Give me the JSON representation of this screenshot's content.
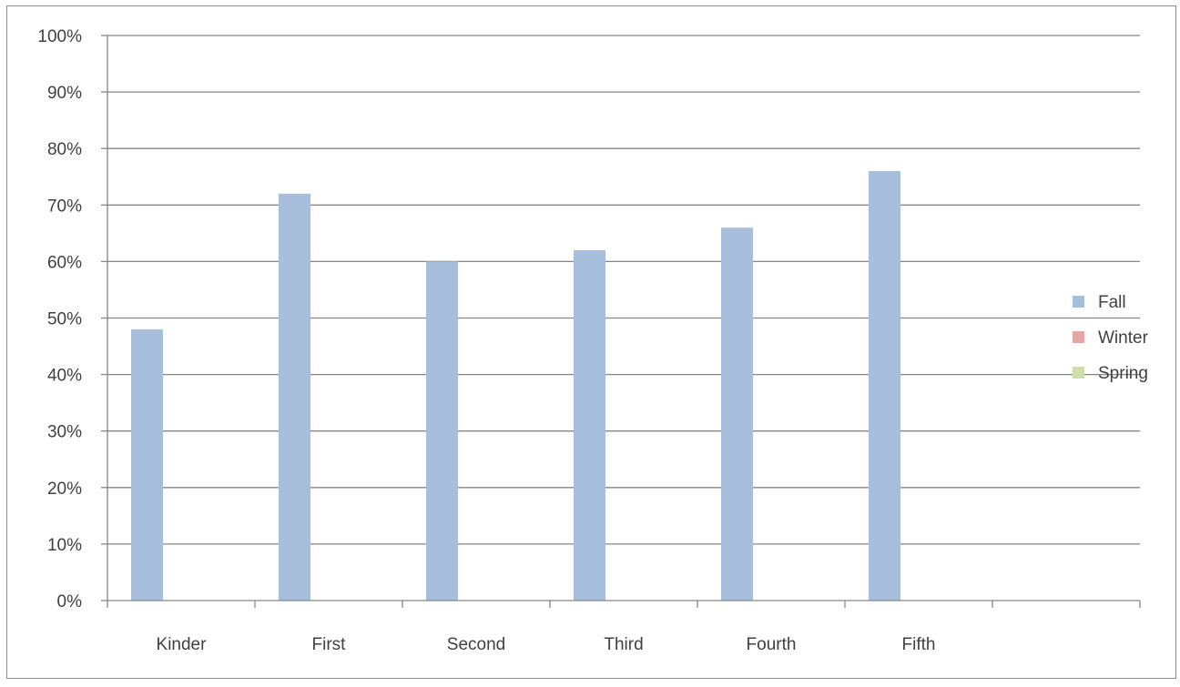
{
  "chart_data": {
    "type": "bar",
    "categories": [
      "Kinder",
      "First",
      "Second",
      "Third",
      "Fourth",
      "Fifth",
      ""
    ],
    "series": [
      {
        "name": "Fall",
        "color": "#a7bfdd",
        "values": [
          48,
          72,
          60,
          62,
          66,
          76,
          null
        ]
      },
      {
        "name": "Winter",
        "color": "#e3a8a6",
        "values": [
          null,
          null,
          null,
          null,
          null,
          null,
          null
        ]
      },
      {
        "name": "Spring",
        "color": "#cfdfa9",
        "values": [
          null,
          null,
          null,
          null,
          null,
          null,
          null
        ]
      }
    ],
    "ylim": [
      0,
      100
    ],
    "yticks": [
      0,
      10,
      20,
      30,
      40,
      50,
      60,
      70,
      80,
      90,
      100
    ],
    "ytick_labels": [
      "0%",
      "10%",
      "20%",
      "30%",
      "40%",
      "50%",
      "60%",
      "70%",
      "80%",
      "90%",
      "100%"
    ],
    "grid": true,
    "legend": "right",
    "title": "",
    "xlabel": "",
    "ylabel": ""
  }
}
